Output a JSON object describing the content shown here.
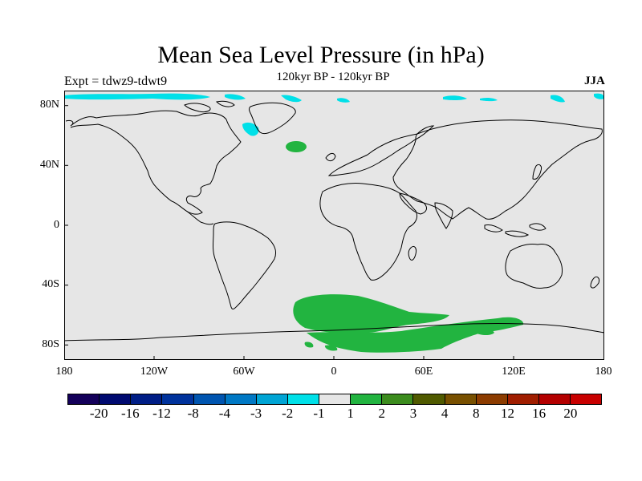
{
  "header": {
    "title": "Mean Sea Level Pressure (in hPa)",
    "subtitle": "120kyr BP - 120kyr BP",
    "experiment": "Expt = tdwz9-tdwt9",
    "season": "JJA"
  },
  "map": {
    "projection": "cylindrical equidistant",
    "background_color": "#e6e6e6",
    "coastline_color": "#000000",
    "lat_range": [
      -90,
      90
    ],
    "lon_range": [
      -180,
      180
    ],
    "lat_ticks": [
      "80N",
      "40N",
      "0",
      "40S",
      "80S"
    ],
    "lon_ticks": [
      "180",
      "120W",
      "60W",
      "0",
      "60E",
      "120E",
      "180"
    ]
  },
  "colorbar": {
    "labels": [
      "-20",
      "-16",
      "-12",
      "-8",
      "-4",
      "-3",
      "-2",
      "-1",
      "1",
      "2",
      "3",
      "4",
      "8",
      "12",
      "16",
      "20"
    ],
    "colors": [
      "#14005a",
      "#000a70",
      "#001e86",
      "#00329c",
      "#0055b0",
      "#0078c4",
      "#00a4d4",
      "#00e0e8",
      "#e6e6e6",
      "#22b440",
      "#3c8c1e",
      "#505a00",
      "#785000",
      "#8c3c00",
      "#a01e00",
      "#b40000",
      "#c80000"
    ]
  },
  "anomalies": {
    "negative_color": "#00e0e8",
    "positive_color": "#22b440"
  }
}
